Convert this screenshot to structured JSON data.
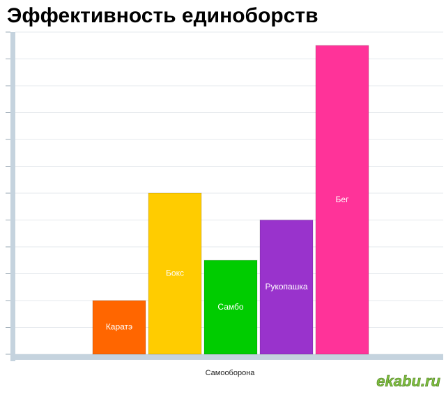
{
  "chart_data": {
    "type": "bar",
    "title": "Эффективность единоборств",
    "x_label": "Самооборона",
    "series": [
      {
        "name": "Каратэ",
        "color": "#ff6600",
        "values": [
          2
        ]
      },
      {
        "name": "Бокс",
        "color": "#ffcc00",
        "values": [
          6
        ]
      },
      {
        "name": "Самбо",
        "color": "#00cc00",
        "values": [
          3.5
        ]
      },
      {
        "name": "Рукопашка",
        "color": "#9933cc",
        "values": [
          5
        ]
      },
      {
        "name": "Бег",
        "color": "#ff3399",
        "values": [
          11.5
        ]
      }
    ],
    "ylim": [
      0,
      12
    ],
    "yticks": [
      0,
      1,
      2,
      3,
      4,
      5,
      6,
      7,
      8,
      9,
      10,
      11,
      12
    ],
    "grid": true,
    "watermark": "ekabu.ru"
  }
}
